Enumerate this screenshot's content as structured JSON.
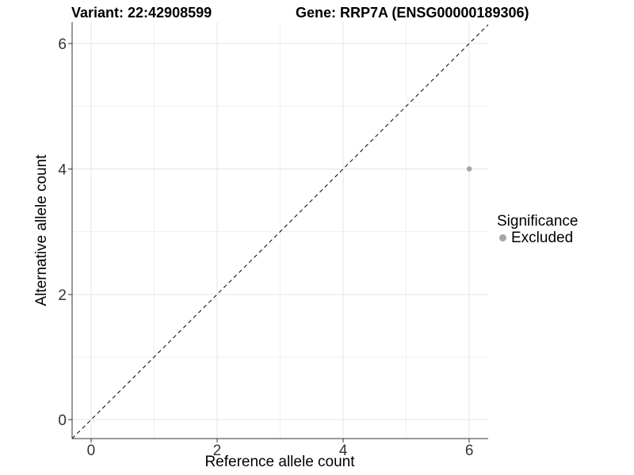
{
  "chart_data": {
    "type": "scatter",
    "titles": {
      "variant": "Variant: 22:42908599",
      "gene": "Gene: RRP7A (ENSG00000189306)"
    },
    "xlabel": "Reference allele count",
    "ylabel": "Alternative allele count",
    "xlim": [
      -0.3,
      6.3
    ],
    "ylim": [
      -0.3,
      6.34
    ],
    "x_ticks": [
      0,
      2,
      4,
      6
    ],
    "y_ticks": [
      0,
      2,
      4,
      6
    ],
    "x_minor_ticks": [
      1,
      3,
      5
    ],
    "y_minor_ticks": [
      1,
      3,
      5
    ],
    "grid": "on",
    "points": [
      {
        "x": 6,
        "y": 4,
        "significance": "Excluded"
      }
    ],
    "identity_line": {
      "slope": 1,
      "intercept": 0,
      "style": "dashed",
      "color": "#000000"
    },
    "legend": {
      "title": "Significance",
      "position": "right",
      "entries": [
        {
          "label": "Excluded",
          "color": "#a6a6a6"
        }
      ]
    },
    "colors": {
      "background": "#ffffff",
      "grid_major": "#e4e4e4",
      "grid_minor": "#f1f1f1",
      "axis_line": "#333333",
      "tick": "#333333",
      "tick_label": "#333333",
      "text": "#000000",
      "point": "#a6a6a6"
    }
  }
}
